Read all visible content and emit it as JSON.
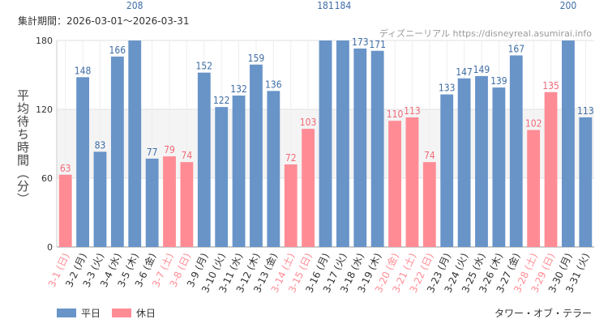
{
  "header": {
    "period": "集計期間：2026-03-01～2026-03-31",
    "source": "ディズニーリアル https://disneyreal.asumirai.info"
  },
  "footer": {
    "attraction": "タワー・オブ・テラー"
  },
  "colors": {
    "weekday": "#6894c8",
    "holiday": "#ff8c95",
    "weekday_text": "#3f6da6",
    "holiday_text": "#f06a78"
  },
  "chart_data": {
    "type": "bar",
    "title": "",
    "xlabel": "",
    "ylabel": "平均待ち時間（分）",
    "ylim": [
      0,
      180
    ],
    "yticks": [
      0,
      60,
      120,
      180
    ],
    "legend": [
      {
        "name": "平日",
        "key": "weekday"
      },
      {
        "name": "休日",
        "key": "holiday"
      }
    ],
    "categories": [
      "3-1 (日)",
      "3-2 (月)",
      "3-3 (火)",
      "3-4 (水)",
      "3-5 (木)",
      "3-6 (金)",
      "3-7 (土)",
      "3-8 (日)",
      "3-9 (月)",
      "3-10 (火)",
      "3-11 (水)",
      "3-12 (木)",
      "3-13 (金)",
      "3-14 (土)",
      "3-15 (日)",
      "3-16 (月)",
      "3-17 (火)",
      "3-18 (水)",
      "3-19 (木)",
      "3-20 (金)",
      "3-21 (土)",
      "3-22 (日)",
      "3-23 (月)",
      "3-24 (火)",
      "3-25 (水)",
      "3-26 (木)",
      "3-27 (金)",
      "3-28 (土)",
      "3-29 (日)",
      "3-30 (月)",
      "3-31 (火)"
    ],
    "values": [
      63,
      148,
      83,
      166,
      208,
      77,
      79,
      74,
      152,
      122,
      132,
      159,
      136,
      72,
      103,
      181,
      184,
      173,
      171,
      110,
      113,
      74,
      133,
      147,
      149,
      139,
      167,
      102,
      135,
      200,
      113
    ],
    "day_type": [
      "holiday",
      "weekday",
      "weekday",
      "weekday",
      "weekday",
      "weekday",
      "holiday",
      "holiday",
      "weekday",
      "weekday",
      "weekday",
      "weekday",
      "weekday",
      "holiday",
      "holiday",
      "weekday",
      "weekday",
      "weekday",
      "weekday",
      "holiday",
      "holiday",
      "holiday",
      "weekday",
      "weekday",
      "weekday",
      "weekday",
      "weekday",
      "holiday",
      "holiday",
      "weekday",
      "weekday"
    ]
  }
}
